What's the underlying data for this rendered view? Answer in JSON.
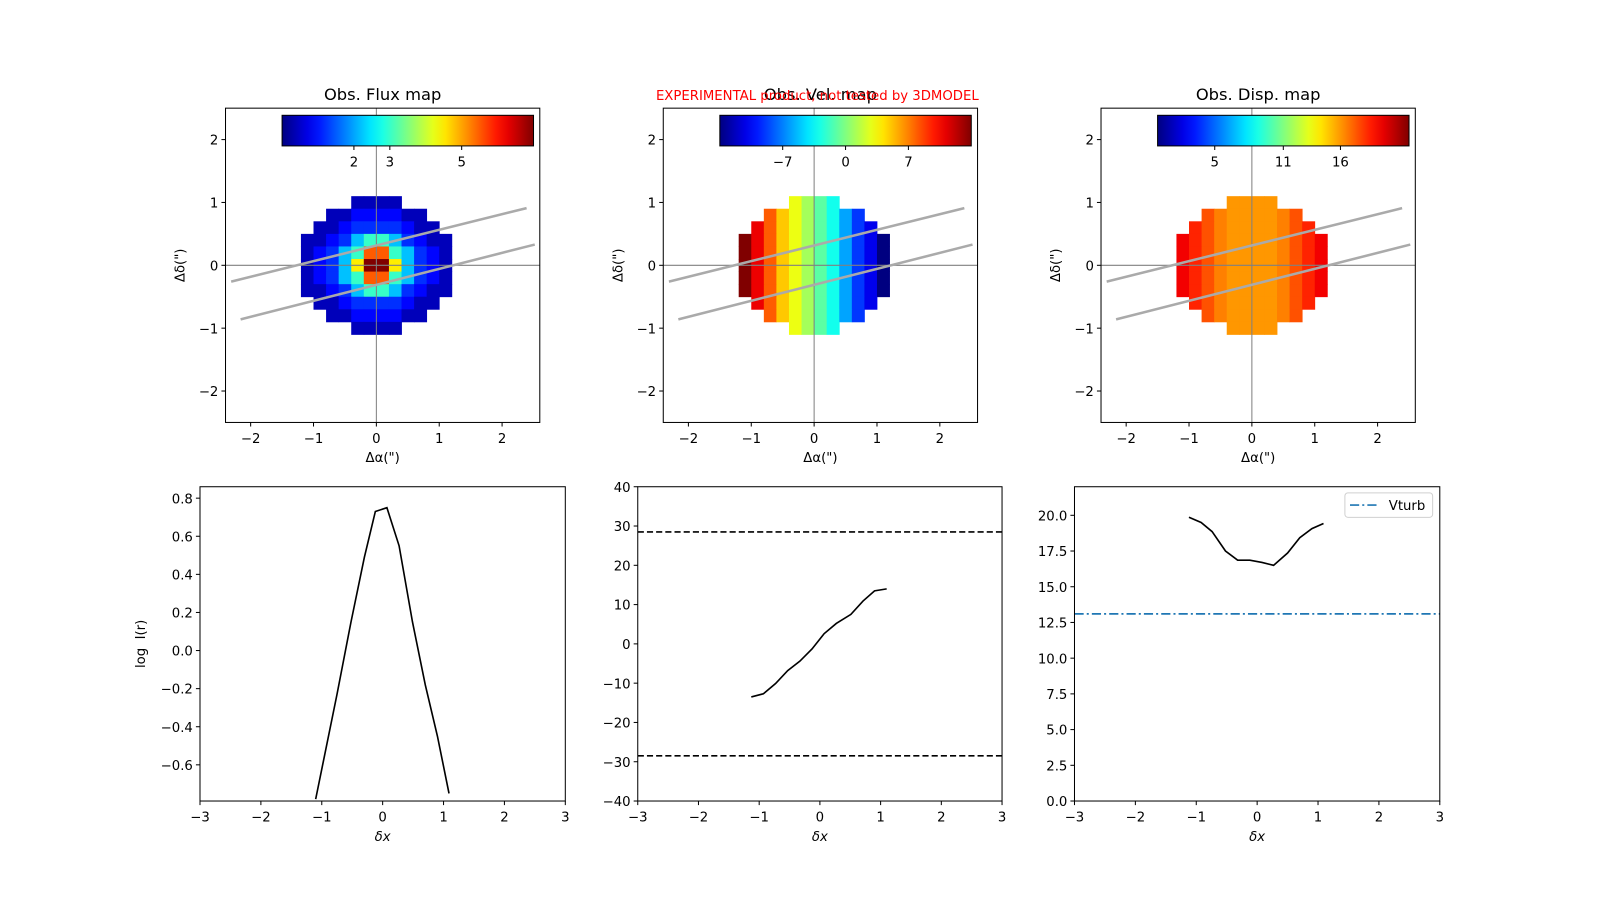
{
  "annotation": "EXPERIMENTAL product, not tested by 3DMODEL",
  "chart_data": [
    {
      "type": "heatmap",
      "title": "Obs. Flux map",
      "xlabel": "Δα(\")",
      "ylabel": "Δδ(\")",
      "xlim": [
        -2.4,
        2.6
      ],
      "ylim": [
        -2.5,
        2.5
      ],
      "xticks": [
        {
          "value": -2,
          "label": "−2"
        },
        {
          "value": -1,
          "label": "−1"
        },
        0,
        1,
        2
      ],
      "yticks": [
        {
          "value": -2,
          "label": "−2"
        },
        {
          "value": -1,
          "label": "−1"
        },
        0,
        1,
        2
      ],
      "colormap": "jet",
      "clim": [
        0,
        7
      ],
      "colorbar_ticks": [
        2,
        3,
        5
      ],
      "x": [
        -1.1,
        -0.9,
        -0.7,
        -0.5,
        -0.3,
        -0.1,
        0.1,
        0.3,
        0.5,
        0.7,
        0.9,
        1.1
      ],
      "y": [
        1.0,
        0.8,
        0.6,
        0.4,
        0.2,
        0,
        -0.2,
        -0.4,
        -0.6,
        -0.8,
        -1.0
      ],
      "z": [
        [
          null,
          null,
          null,
          null,
          0.4,
          0.4,
          0.4,
          0.4,
          null,
          null,
          null,
          null
        ],
        [
          null,
          null,
          0.4,
          0.4,
          0.9,
          0.9,
          0.9,
          0.9,
          0.4,
          0.4,
          null,
          null
        ],
        [
          null,
          0.4,
          0.4,
          0.9,
          1.2,
          1.2,
          1.2,
          1.2,
          0.9,
          0.4,
          0.4,
          null
        ],
        [
          0.4,
          0.4,
          0.9,
          1.2,
          2.2,
          3.0,
          3.0,
          2.2,
          1.2,
          0.9,
          0.4,
          0.4
        ],
        [
          0.4,
          0.9,
          1.2,
          2.2,
          3.0,
          5.5,
          5.5,
          3.0,
          2.2,
          1.2,
          0.9,
          0.4
        ],
        [
          0.4,
          0.9,
          1.2,
          2.2,
          4.5,
          7,
          7,
          4.5,
          2.2,
          1.2,
          0.9,
          0.4
        ],
        [
          0.4,
          0.9,
          1.2,
          2.2,
          3.0,
          5.5,
          5.5,
          3.0,
          2.2,
          1.2,
          0.9,
          0.4
        ],
        [
          0.4,
          0.4,
          0.9,
          1.2,
          2.2,
          3.0,
          3.0,
          2.2,
          1.2,
          0.9,
          0.4,
          0.4
        ],
        [
          null,
          0.4,
          0.4,
          0.9,
          1.2,
          1.2,
          1.2,
          1.2,
          0.9,
          0.4,
          0.4,
          null
        ],
        [
          null,
          null,
          0.4,
          0.4,
          0.9,
          0.9,
          0.9,
          0.9,
          0.4,
          0.4,
          null,
          null
        ],
        [
          null,
          null,
          null,
          null,
          0.4,
          0.4,
          0.4,
          0.4,
          null,
          null,
          null,
          null
        ]
      ],
      "hlines": [
        0
      ],
      "vlines": [
        0
      ],
      "lines": [
        {
          "x": [
            -2.31,
            2.39
          ],
          "y": [
            -0.26,
            0.91
          ]
        },
        {
          "x": [
            -2.16,
            2.52
          ],
          "y": [
            -0.86,
            0.33
          ]
        }
      ]
    },
    {
      "type": "heatmap",
      "title": "Obs. Vel. map",
      "xlabel": "Δα(\")",
      "ylabel": "Δδ(\")",
      "xlim": [
        -2.4,
        2.6
      ],
      "ylim": [
        -2.5,
        2.5
      ],
      "xticks": [
        {
          "value": -2,
          "label": "−2"
        },
        {
          "value": -1,
          "label": "−1"
        },
        0,
        1,
        2
      ],
      "yticks": [
        {
          "value": -2,
          "label": "−2"
        },
        {
          "value": -1,
          "label": "−1"
        },
        0,
        1,
        2
      ],
      "colormap": "jet",
      "clim": [
        -14,
        14
      ],
      "colorbar_ticks": [
        {
          "value": -7,
          "label": "−7"
        },
        0,
        7
      ],
      "x": [
        -1.1,
        -0.9,
        -0.7,
        -0.5,
        -0.3,
        -0.1,
        0.1,
        0.3,
        0.5,
        0.7,
        0.9,
        1.1
      ],
      "y": [
        1.0,
        0.8,
        0.6,
        0.4,
        0.2,
        0,
        -0.2,
        -0.4,
        -0.6,
        -0.8,
        -1.0
      ],
      "z": [
        [
          null,
          null,
          null,
          null,
          3,
          1,
          -1,
          -3,
          null,
          null,
          null,
          null
        ],
        [
          null,
          null,
          8,
          5,
          3,
          1,
          -1,
          -3,
          -6,
          -9,
          null,
          null
        ],
        [
          null,
          11,
          8,
          5,
          3,
          1,
          -1,
          -3,
          -6,
          -9,
          -11,
          null
        ],
        [
          14,
          11,
          8,
          5,
          3,
          1,
          -1,
          -3,
          -6,
          -9,
          -11,
          -14
        ],
        [
          14,
          11,
          8,
          5,
          3,
          1,
          -1,
          -3,
          -6,
          -9,
          -11,
          -14
        ],
        [
          14,
          11,
          8,
          5,
          3,
          1,
          -1,
          -3,
          -6,
          -9,
          -11,
          -14
        ],
        [
          14,
          11,
          8,
          5,
          3,
          1,
          -1,
          -3,
          -6,
          -9,
          -11,
          -14
        ],
        [
          14,
          11,
          8,
          5,
          3,
          1,
          -1,
          -3,
          -6,
          -9,
          -11,
          -14
        ],
        [
          null,
          11,
          8,
          5,
          3,
          1,
          -1,
          -3,
          -6,
          -9,
          -11,
          null
        ],
        [
          null,
          null,
          8,
          5,
          3,
          1,
          -1,
          -3,
          -6,
          -9,
          null,
          null
        ],
        [
          null,
          null,
          null,
          null,
          3,
          1,
          -1,
          -3,
          null,
          null,
          null,
          null
        ]
      ],
      "hlines": [
        0
      ],
      "vlines": [
        0
      ],
      "lines": [
        {
          "x": [
            -2.31,
            2.39
          ],
          "y": [
            -0.26,
            0.91
          ]
        },
        {
          "x": [
            -2.16,
            2.52
          ],
          "y": [
            -0.86,
            0.33
          ]
        }
      ]
    },
    {
      "type": "heatmap",
      "title": "Obs. Disp. map",
      "xlabel": "Δα(\")",
      "ylabel": "Δδ(\")",
      "xlim": [
        -2.4,
        2.6
      ],
      "ylim": [
        -2.5,
        2.5
      ],
      "xticks": [
        {
          "value": -2,
          "label": "−2"
        },
        {
          "value": -1,
          "label": "−1"
        },
        0,
        1,
        2
      ],
      "yticks": [
        {
          "value": -2,
          "label": "−2"
        },
        {
          "value": -1,
          "label": "−1"
        },
        0,
        1,
        2
      ],
      "colormap": "jet",
      "clim": [
        0,
        22
      ],
      "colorbar_ticks": [
        5,
        11,
        16
      ],
      "x": [
        -1.1,
        -0.9,
        -0.7,
        -0.5,
        -0.3,
        -0.1,
        0.1,
        0.3,
        0.5,
        0.7,
        0.9,
        1.1
      ],
      "y": [
        1.0,
        0.8,
        0.6,
        0.4,
        0.2,
        0,
        -0.2,
        -0.4,
        -0.6,
        -0.8,
        -1.0
      ],
      "z": [
        [
          null,
          null,
          null,
          null,
          16,
          16,
          16,
          16,
          null,
          null,
          null,
          null
        ],
        [
          null,
          null,
          17.5,
          16.5,
          16,
          16,
          16,
          16,
          16.5,
          17.5,
          null,
          null
        ],
        [
          null,
          18.5,
          17.5,
          16.5,
          16,
          16,
          16,
          16,
          16.5,
          17.5,
          18.5,
          null
        ],
        [
          19.5,
          18.5,
          17.5,
          16.5,
          16,
          16,
          16,
          16,
          16.5,
          17.5,
          18.5,
          19.5
        ],
        [
          19.5,
          18.5,
          17.5,
          16.5,
          16,
          16,
          16,
          16,
          16.5,
          17.5,
          18.5,
          19.5
        ],
        [
          19.5,
          18.5,
          17.5,
          16.5,
          16,
          16,
          16,
          16,
          16.5,
          17.5,
          18.5,
          19.5
        ],
        [
          19.5,
          18.5,
          17.5,
          16.5,
          16,
          16,
          16,
          16,
          16.5,
          17.5,
          18.5,
          19.5
        ],
        [
          19.5,
          18.5,
          17.5,
          16.5,
          16,
          16,
          16,
          16,
          16.5,
          17.5,
          18.5,
          19.5
        ],
        [
          null,
          18.5,
          17.5,
          16.5,
          16,
          16,
          16,
          16,
          16.5,
          17.5,
          18.5,
          null
        ],
        [
          null,
          null,
          17.5,
          16.5,
          16,
          16,
          16,
          16,
          16.5,
          17.5,
          null,
          null
        ],
        [
          null,
          null,
          null,
          null,
          16,
          16,
          16,
          16,
          null,
          null,
          null,
          null
        ]
      ],
      "hlines": [
        0
      ],
      "vlines": [
        0
      ],
      "lines": [
        {
          "x": [
            -2.31,
            2.39
          ],
          "y": [
            -0.26,
            0.91
          ]
        },
        {
          "x": [
            -2.16,
            2.52
          ],
          "y": [
            -0.86,
            0.33
          ]
        }
      ]
    },
    {
      "type": "line",
      "xlabel": "δx",
      "ylabel": "log  I(r)",
      "xlim": [
        -3,
        3
      ],
      "ylim": [
        -0.79,
        0.86
      ],
      "xticks": [
        {
          "value": -3,
          "label": "−3"
        },
        {
          "value": -2,
          "label": "−2"
        },
        {
          "value": -1,
          "label": "−1"
        },
        0,
        1,
        2,
        3
      ],
      "yticks": [
        {
          "value": -0.6,
          "label": "−0.6"
        },
        {
          "value": -0.4,
          "label": "−0.4"
        },
        {
          "value": -0.2,
          "label": "−0.2"
        },
        {
          "value": 0,
          "label": "0.0"
        },
        0.2,
        0.4,
        0.6,
        0.8
      ],
      "series": [
        {
          "color": "#000000",
          "x": [
            -1.1,
            -0.75,
            -0.52,
            -0.3,
            -0.12,
            0.07,
            0.27,
            0.49,
            0.7,
            0.9,
            1.09
          ],
          "values": [
            -0.78,
            -0.23,
            0.15,
            0.49,
            0.73,
            0.75,
            0.55,
            0.15,
            -0.18,
            -0.45,
            -0.75
          ]
        }
      ]
    },
    {
      "type": "line",
      "xlabel": "δx",
      "xlim": [
        -3,
        3
      ],
      "ylim": [
        -40,
        40
      ],
      "xticks": [
        {
          "value": -3,
          "label": "−3"
        },
        {
          "value": -2,
          "label": "−2"
        },
        {
          "value": -1,
          "label": "−1"
        },
        0,
        1,
        2,
        3
      ],
      "yticks": [
        {
          "value": -40,
          "label": "−40"
        },
        {
          "value": -30,
          "label": "−30"
        },
        {
          "value": -20,
          "label": "−20"
        },
        {
          "value": -10,
          "label": "−10"
        },
        0,
        10,
        20,
        30,
        40
      ],
      "series": [
        {
          "color": "#000000",
          "x": [
            -1.13,
            -0.93,
            -0.73,
            -0.53,
            -0.33,
            -0.13,
            0.07,
            0.27,
            0.51,
            0.71,
            0.9,
            1.1
          ],
          "values": [
            -13.5,
            -12.7,
            -10.1,
            -6.8,
            -4.4,
            -1.3,
            2.6,
            5.2,
            7.5,
            10.9,
            13.5,
            14.0
          ]
        }
      ],
      "hlines": [
        {
          "y": 28.5,
          "color": "#000000",
          "style": "dashed"
        },
        {
          "y": -28.5,
          "color": "#000000",
          "style": "dashed"
        }
      ]
    },
    {
      "type": "line",
      "xlabel": "δx",
      "xlim": [
        -3,
        3
      ],
      "ylim": [
        0,
        22
      ],
      "xticks": [
        {
          "value": -3,
          "label": "−3"
        },
        {
          "value": -2,
          "label": "−2"
        },
        {
          "value": -1,
          "label": "−1"
        },
        0,
        1,
        2,
        3
      ],
      "yticks": [
        {
          "value": 0,
          "label": "0.0"
        },
        2.5,
        {
          "value": 5,
          "label": "5.0"
        },
        7.5,
        {
          "value": 10,
          "label": "10.0"
        },
        12.5,
        {
          "value": 15,
          "label": "15.0"
        },
        17.5,
        {
          "value": 20,
          "label": "20.0"
        }
      ],
      "series": [
        {
          "color": "#000000",
          "x": [
            -1.12,
            -0.92,
            -0.74,
            -0.52,
            -0.32,
            -0.12,
            0.08,
            0.27,
            0.5,
            0.7,
            0.9,
            1.09
          ],
          "values": [
            19.86,
            19.5,
            18.86,
            17.5,
            16.86,
            16.86,
            16.7,
            16.5,
            17.36,
            18.43,
            19.07,
            19.43
          ]
        }
      ],
      "hlines": [
        {
          "name": "Vturb",
          "y": 13.1,
          "color": "#1f77b4",
          "style": "dashdot"
        }
      ],
      "legend": "upper right"
    }
  ]
}
